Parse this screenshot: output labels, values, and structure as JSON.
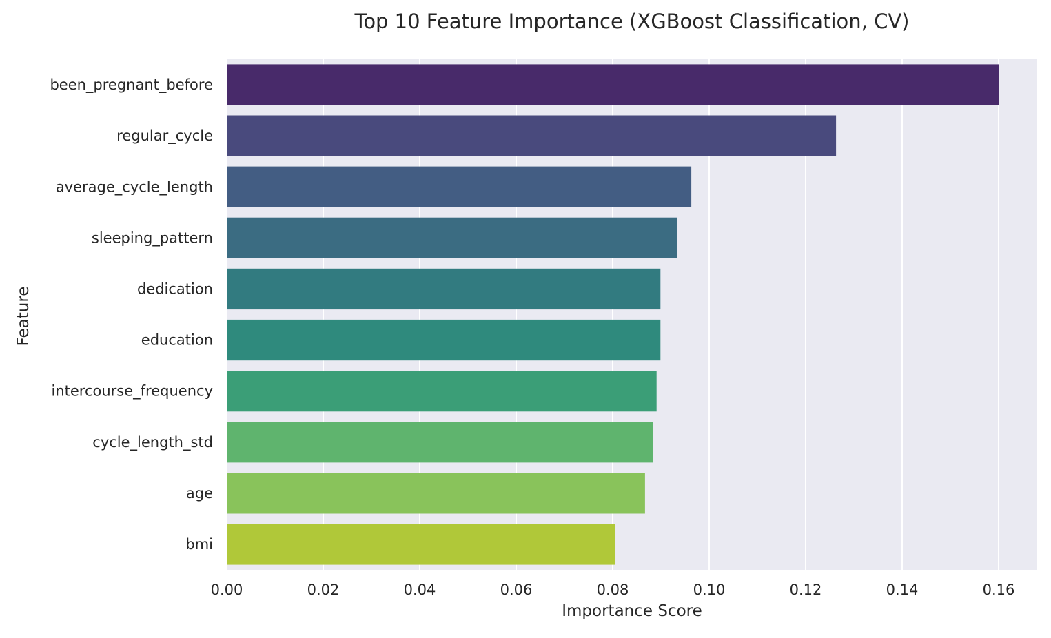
{
  "chart_data": {
    "type": "bar",
    "orientation": "horizontal",
    "title": "Top 10 Feature Importance (XGBoost Classification, CV)",
    "xlabel": "Importance Score",
    "ylabel": "Feature",
    "xlim": [
      0,
      0.168
    ],
    "xticks": [
      "0.00",
      "0.02",
      "0.04",
      "0.06",
      "0.08",
      "0.10",
      "0.12",
      "0.14",
      "0.16"
    ],
    "grid": true,
    "categories": [
      "been_pregnant_before",
      "regular_cycle",
      "average_cycle_length",
      "sleeping_pattern",
      "dedication",
      "education",
      "intercourse_frequency",
      "cycle_length_std",
      "age",
      "bmi"
    ],
    "values": [
      0.16,
      0.1263,
      0.0963,
      0.0933,
      0.0899,
      0.0899,
      0.0891,
      0.0883,
      0.0867,
      0.0805
    ],
    "colors": [
      "#482a6a",
      "#494a7d",
      "#435d83",
      "#3b6c82",
      "#327b80",
      "#2f8a7d",
      "#3b9e77",
      "#5fb46e",
      "#89c35b",
      "#b0c839"
    ],
    "background": "#eaeaf2",
    "grid_color": "#ffffff"
  }
}
